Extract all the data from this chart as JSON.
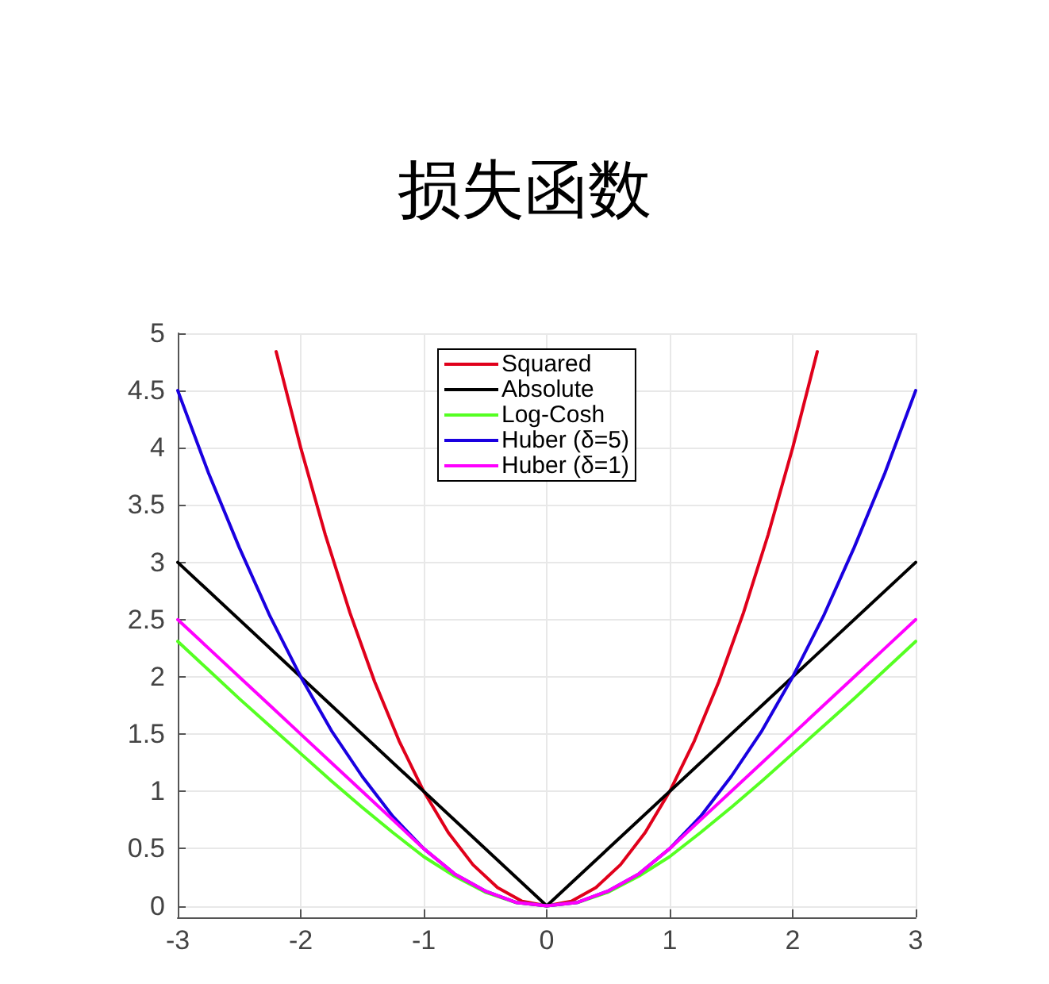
{
  "chart_data": {
    "type": "line",
    "title": "损失函数",
    "xlim": [
      -3,
      3
    ],
    "xticks": [
      -3,
      -2,
      -1,
      0,
      1,
      2,
      3
    ],
    "ylim": [
      -0.1,
      5
    ],
    "yticks": [
      0,
      0.5,
      1,
      1.5,
      2,
      2.5,
      3,
      3.5,
      4,
      4.5,
      5
    ],
    "grid": true,
    "legend": "top",
    "marker": "none",
    "line_style": "solid",
    "series": [
      {
        "name": "Squared",
        "color": "#e0001b",
        "x": [
          -2.2,
          -2,
          -1.8,
          -1.6,
          -1.4,
          -1.2,
          -1,
          -0.8,
          -0.6,
          -0.4,
          -0.2,
          0,
          0.2,
          0.4,
          0.6,
          0.8,
          1,
          1.2,
          1.4,
          1.6,
          1.8,
          2,
          2.2
        ],
        "values": [
          4.84,
          4,
          3.24,
          2.56,
          1.96,
          1.44,
          1,
          0.64,
          0.36,
          0.16,
          0.04,
          0,
          0.04,
          0.16,
          0.36,
          0.64,
          1,
          1.44,
          1.96,
          2.56,
          3.24,
          4,
          4.84
        ]
      },
      {
        "name": "Absolute",
        "color": "#000000",
        "x": [
          -3,
          0,
          3
        ],
        "values": [
          3,
          0,
          3
        ]
      },
      {
        "name": "Log-Cosh",
        "color": "#55ff22",
        "x": [
          -3,
          -2.75,
          -2.5,
          -2.25,
          -2,
          -1.75,
          -1.5,
          -1.25,
          -1,
          -0.75,
          -0.5,
          -0.25,
          0,
          0.25,
          0.5,
          0.75,
          1,
          1.25,
          1.5,
          1.75,
          2,
          2.25,
          2.5,
          2.75,
          3
        ],
        "values": [
          2.31,
          2.06,
          1.81,
          1.57,
          1.33,
          1.09,
          0.86,
          0.64,
          0.43,
          0.26,
          0.12,
          0.03,
          0,
          0.03,
          0.12,
          0.26,
          0.43,
          0.64,
          0.86,
          1.09,
          1.33,
          1.57,
          1.81,
          2.06,
          2.31
        ]
      },
      {
        "name": "Huber (δ=5)",
        "color": "#1a00e0",
        "x": [
          -3,
          -2.75,
          -2.5,
          -2.25,
          -2,
          -1.75,
          -1.5,
          -1.25,
          -1,
          -0.75,
          -0.5,
          -0.25,
          0,
          0.25,
          0.5,
          0.75,
          1,
          1.25,
          1.5,
          1.75,
          2,
          2.25,
          2.5,
          2.75,
          3
        ],
        "values": [
          4.5,
          3.78,
          3.13,
          2.53,
          2,
          1.53,
          1.13,
          0.78,
          0.5,
          0.28,
          0.13,
          0.03,
          0,
          0.03,
          0.13,
          0.28,
          0.5,
          0.78,
          1.13,
          1.53,
          2,
          2.53,
          3.13,
          3.78,
          4.5
        ]
      },
      {
        "name": "Huber (δ=1)",
        "color": "#ff00ff",
        "x": [
          -3,
          -2.75,
          -2.5,
          -2.25,
          -2,
          -1.75,
          -1.5,
          -1.25,
          -1,
          -0.75,
          -0.5,
          -0.25,
          0,
          0.25,
          0.5,
          0.75,
          1,
          1.25,
          1.5,
          1.75,
          2,
          2.25,
          2.5,
          2.75,
          3
        ],
        "values": [
          2.5,
          2.25,
          2,
          1.75,
          1.5,
          1.25,
          1,
          0.75,
          0.5,
          0.28,
          0.13,
          0.03,
          0,
          0.03,
          0.13,
          0.28,
          0.5,
          0.75,
          1,
          1.25,
          1.5,
          1.75,
          2,
          2.25,
          2.5
        ]
      }
    ]
  }
}
